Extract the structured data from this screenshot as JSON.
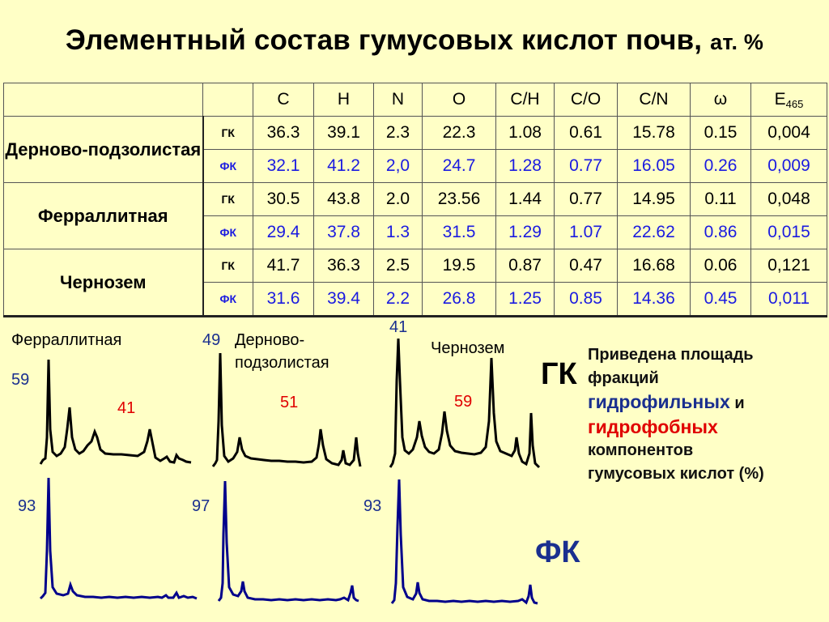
{
  "title": {
    "main": "Элементный состав гумусовых кислот почв,",
    "unit": "ат. %"
  },
  "table": {
    "headers": [
      "C",
      "H",
      "N",
      "O",
      "C/H",
      "C/O",
      "C/N",
      "ω",
      "E",
      "465"
    ],
    "soils": [
      {
        "name": "Дерново-подзолистая",
        "rows": [
          {
            "type": "ГК",
            "values": [
              "36.3",
              "39.1",
              "2.3",
              "22.3",
              "1.08",
              "0.61",
              "15.78",
              "0.15",
              "0,004"
            ]
          },
          {
            "type": "ФК",
            "values": [
              "32.1",
              "41.2",
              "2,0",
              "24.7",
              "1.28",
              "0.77",
              "16.05",
              "0.26",
              "0,009"
            ]
          }
        ]
      },
      {
        "name": "Ферраллитная",
        "rows": [
          {
            "type": "ГК",
            "values": [
              "30.5",
              "43.8",
              "2.0",
              "23.56",
              "1.44",
              "0.77",
              "14.95",
              "0.11",
              "0,048"
            ]
          },
          {
            "type": "ФК",
            "values": [
              "29.4",
              "37.8",
              "1.3",
              "31.5",
              "1.29",
              "1.07",
              "22.62",
              "0.86",
              "0,015"
            ]
          }
        ]
      },
      {
        "name": "Чернозем",
        "rows": [
          {
            "type": "ГК",
            "values": [
              "41.7",
              "36.3",
              "2.5",
              "19.5",
              "0.87",
              "0.47",
              "16.68",
              "0.06",
              "0,121"
            ]
          },
          {
            "type": "ФК",
            "values": [
              "31.6",
              "39.4",
              "2.2",
              "26.8",
              "1.25",
              "0.85",
              "14.36",
              "0.45",
              "0,011"
            ]
          }
        ]
      }
    ]
  },
  "chromatograms": {
    "soil_labels": {
      "ferrallitic": "Ферраллитная",
      "sod_podzolic_1": "Дерново-",
      "sod_podzolic_2": "подзолистая",
      "chernozem": "Чернозем"
    },
    "gk": {
      "label": "ГК",
      "ferrallitic": {
        "hydrophilic": "59",
        "hydrophobic": "41"
      },
      "sod_podzolic": {
        "hydrophilic": "49",
        "hydrophobic": "51"
      },
      "chernozem": {
        "hydrophilic": "41",
        "hydrophobic": "59"
      }
    },
    "fk": {
      "label": "ФК",
      "ferrallitic": {
        "hydrophilic": "93"
      },
      "sod_podzolic": {
        "hydrophilic": "97"
      },
      "chernozem": {
        "hydrophilic": "93"
      }
    },
    "colors": {
      "gk_trace": "#000000",
      "fk_trace": "#00008b",
      "hydrophilic": "#1a2f8f",
      "hydrophobic": "#e00000"
    }
  },
  "caption": {
    "line1": "Приведена площадь",
    "line2": "фракций",
    "hydrophilic": "гидрофильных",
    "and": "и",
    "hydrophobic": "гидрофобных",
    "line5": "компонентов",
    "line6": "гумусовых кислот (%)"
  }
}
